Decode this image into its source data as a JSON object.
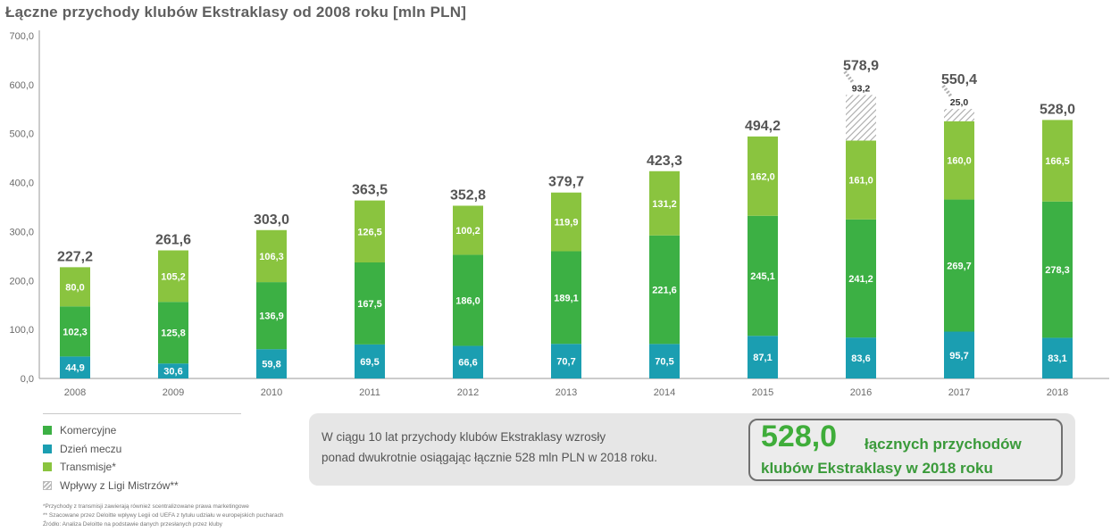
{
  "title": "Łączne przychody klubów Ekstraklasy od 2008 roku [mln PLN]",
  "colors": {
    "komercyjne": "#3cb044",
    "dzien_meczu": "#1b9eb1",
    "transmisje": "#8ac43f",
    "liga": "#bdbdbd",
    "axis_text": "#6b6b6b",
    "total_text": "#555555"
  },
  "chart_data": {
    "type": "bar",
    "stacked": true,
    "title": "Łączne przychody klubów Ekstraklasy od 2008 roku [mln PLN]",
    "categories": [
      "2008",
      "2009",
      "2010",
      "2011",
      "2012",
      "2013",
      "2014",
      "2015",
      "2016",
      "2017",
      "2018"
    ],
    "series": [
      {
        "name": "Dzień meczu",
        "key": "dzien_meczu",
        "values": [
          44.9,
          30.6,
          59.8,
          69.5,
          66.6,
          70.7,
          70.5,
          87.1,
          83.6,
          95.7,
          83.1
        ],
        "labels": [
          "44,9",
          "30,6",
          "59,8",
          "69,5",
          "66,6",
          "70,7",
          "70,5",
          "87,1",
          "83,6",
          "95,7",
          "83,1"
        ]
      },
      {
        "name": "Komercyjne",
        "key": "komercyjne",
        "values": [
          102.3,
          125.8,
          136.9,
          167.5,
          186.0,
          189.1,
          221.6,
          245.1,
          241.2,
          269.7,
          278.3
        ],
        "labels": [
          "102,3",
          "125,8",
          "136,9",
          "167,5",
          "186,0",
          "189,1",
          "221,6",
          "245,1",
          "241,2",
          "269,7",
          "278,3"
        ]
      },
      {
        "name": "Transmisje*",
        "key": "transmisje",
        "values": [
          80.0,
          105.2,
          106.3,
          126.5,
          100.2,
          119.9,
          131.2,
          162.0,
          161.0,
          160.0,
          166.5
        ],
        "labels": [
          "80,0",
          "105,2",
          "106,3",
          "126,5",
          "100,2",
          "119,9",
          "131,2",
          "162,0",
          "161,0",
          "160,0",
          "166,5"
        ]
      },
      {
        "name": "Wpływy z Ligi Mistrzów**",
        "key": "liga",
        "values": [
          0,
          0,
          0,
          0,
          0,
          0,
          0,
          0,
          93.2,
          25.0,
          0
        ],
        "labels": [
          "",
          "",
          "",
          "",
          "",
          "",
          "",
          "",
          "93,2",
          "25,0",
          ""
        ]
      }
    ],
    "totals": [
      227.2,
      261.6,
      303.0,
      363.5,
      352.8,
      379.7,
      423.3,
      494.2,
      578.9,
      550.4,
      528.0
    ],
    "total_labels": [
      "227,2",
      "261,6",
      "303,0",
      "363,5",
      "352,8",
      "379,7",
      "423,3",
      "494,2",
      "578,9",
      "550,4",
      "528,0"
    ],
    "ylim": [
      0,
      700
    ],
    "yticks": [
      0,
      100,
      200,
      300,
      400,
      500,
      600,
      700
    ],
    "ytick_labels": [
      "0,0",
      "100,0",
      "200,0",
      "300,0",
      "400,0",
      "500,0",
      "600,0",
      "700,0"
    ],
    "legend_position": "bottom-left"
  },
  "legend": [
    {
      "label": "Komercyjne",
      "color": "#3cb044",
      "hatch": false
    },
    {
      "label": "Dzień meczu",
      "color": "#1b9eb1",
      "hatch": false
    },
    {
      "label": "Transmisje*",
      "color": "#8ac43f",
      "hatch": false
    },
    {
      "label": "Wpływy z Ligi Mistrzów**",
      "color": "#bdbdbd",
      "hatch": true
    }
  ],
  "info": {
    "line1": "W ciągu 10 lat przychody klubów Ekstraklasy wzrosły",
    "line2": "ponad dwukrotnie osiągając łącznie 528 mln PLN w 2018 roku."
  },
  "highlight": {
    "value": "528,0",
    "line1": "łącznych przychodów",
    "line2": "klubów Ekstraklasy w 2018 roku"
  },
  "notes": [
    "*Przychody z transmisji zawierają również scentralizowane prawa marketingowe",
    "** Szacowane przez Deloitte wpływy Legii od UEFA z tytułu udziału w europejskich pucharach",
    "Źródło: Analiza Deloitte na podstawie danych przesłanych przez kluby"
  ]
}
